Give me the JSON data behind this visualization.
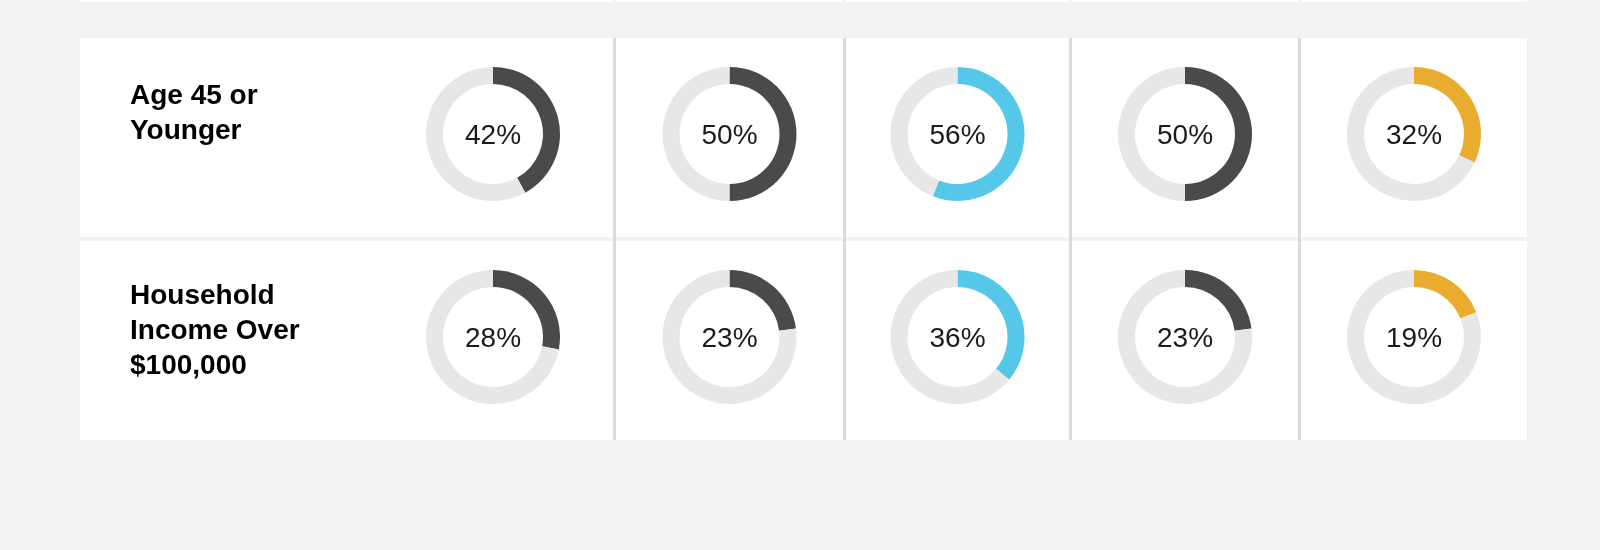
{
  "chart_data": [
    {
      "type": "other",
      "title": "Age 45 or Younger"
    },
    {
      "type": "donut",
      "categories": [
        null,
        null
      ],
      "values": [
        42,
        58
      ],
      "colors": [
        "#4a4a4a",
        "#e6e7e6"
      ],
      "annotations": [
        "42%"
      ]
    },
    {
      "type": "donut",
      "categories": [
        null,
        null
      ],
      "values": [
        50,
        50
      ],
      "colors": [
        "#4a4a4a",
        "#e6e7e6"
      ],
      "annotations": [
        "50%"
      ]
    },
    {
      "type": "donut",
      "categories": [
        null,
        null
      ],
      "values": [
        56,
        44
      ],
      "colors": [
        "#55c8ea",
        "#e6e7e6"
      ],
      "annotations": [
        "56%"
      ]
    },
    {
      "type": "donut",
      "categories": [
        null,
        null
      ],
      "values": [
        50,
        50
      ],
      "colors": [
        "#4a4a4a",
        "#e6e7e6"
      ],
      "annotations": [
        "50%"
      ]
    },
    {
      "type": "donut",
      "categories": [
        null,
        null
      ],
      "values": [
        32,
        68
      ],
      "colors": [
        "#e9ac2e",
        "#e6e7e6"
      ],
      "annotations": [
        "32%"
      ]
    },
    {
      "type": "other",
      "title": "Household Income Over $100,000"
    },
    {
      "type": "donut",
      "categories": [
        null,
        null
      ],
      "values": [
        28,
        72
      ],
      "colors": [
        "#4a4a4a",
        "#e6e7e6"
      ],
      "annotations": [
        "28%"
      ]
    },
    {
      "type": "donut",
      "categories": [
        null,
        null
      ],
      "values": [
        23,
        77
      ],
      "colors": [
        "#4a4a4a",
        "#e6e7e6"
      ],
      "annotations": [
        "23%"
      ]
    },
    {
      "type": "donut",
      "categories": [
        null,
        null
      ],
      "values": [
        36,
        64
      ],
      "colors": [
        "#55c8ea",
        "#e6e7e6"
      ],
      "annotations": [
        "36%"
      ]
    },
    {
      "type": "donut",
      "categories": [
        null,
        null
      ],
      "values": [
        23,
        77
      ],
      "colors": [
        "#4a4a4a",
        "#e6e7e6"
      ],
      "annotations": [
        "23%"
      ]
    },
    {
      "type": "donut",
      "categories": [
        null,
        null
      ],
      "values": [
        19,
        81
      ],
      "colors": [
        "#e9ac2e",
        "#e6e7e6"
      ],
      "annotations": [
        "19%"
      ]
    }
  ]
}
